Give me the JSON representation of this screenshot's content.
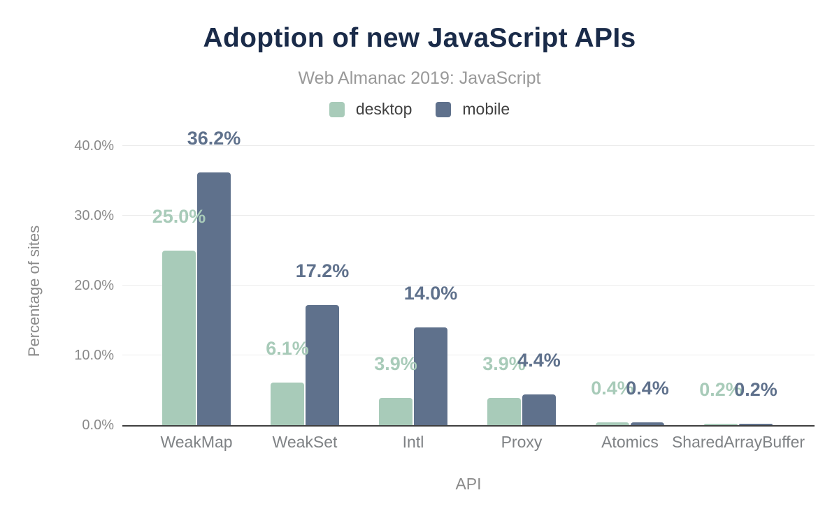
{
  "chart_data": {
    "type": "bar",
    "title": "Adoption of new JavaScript APIs",
    "subtitle": "Web Almanac 2019: JavaScript",
    "xlabel": "API",
    "ylabel": "Percentage of sites",
    "legend_position": "top",
    "grid": "horizontal",
    "ylim": [
      0,
      40
    ],
    "y_ticks": [
      {
        "value": 0,
        "label": "0.0%"
      },
      {
        "value": 10,
        "label": "10.0%"
      },
      {
        "value": 20,
        "label": "20.0%"
      },
      {
        "value": 30,
        "label": "30.0%"
      },
      {
        "value": 40,
        "label": "40.0%"
      }
    ],
    "categories": [
      "WeakMap",
      "WeakSet",
      "Intl",
      "Proxy",
      "Atomics",
      "SharedArrayBuffer"
    ],
    "series": [
      {
        "name": "desktop",
        "color": "#a8cbb9",
        "values": [
          25.0,
          6.1,
          3.9,
          3.9,
          0.4,
          0.2
        ],
        "value_labels": [
          "25.0%",
          "6.1%",
          "3.9%",
          "3.9%",
          "0.4%",
          "0.2%"
        ]
      },
      {
        "name": "mobile",
        "color": "#5f718c",
        "values": [
          36.2,
          17.2,
          14.0,
          4.4,
          0.4,
          0.2
        ],
        "value_labels": [
          "36.2%",
          "17.2%",
          "14.0%",
          "4.4%",
          "0.4%",
          "0.2%"
        ]
      }
    ]
  },
  "colors": {
    "title": "#1a2b49",
    "subtitle": "#999999",
    "legend_text": "#404040",
    "axis_text": "#8a8a8a",
    "category_text": "#7f8285",
    "gridline": "#ececec",
    "axis_line": "#3f3f3f",
    "background": "#ffffff"
  }
}
